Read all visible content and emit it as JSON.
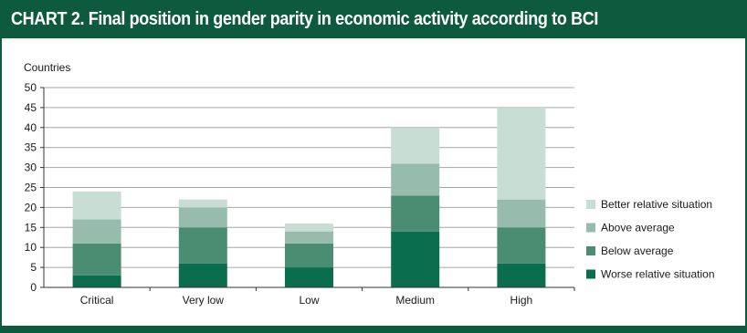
{
  "header": {
    "title": "CHART 2. Final position in gender parity in economic activity according to BCI"
  },
  "colors": {
    "frame": "#0d5a3e",
    "gridline": "#a6a6a6"
  },
  "chart_data": {
    "type": "bar",
    "stacked": true,
    "title": "CHART 2. Final position in gender parity in economic activity according to BCI",
    "ylabel": "Countries",
    "xlabel": "",
    "ylim": [
      0,
      50
    ],
    "yticks": [
      0,
      5,
      10,
      15,
      20,
      25,
      30,
      35,
      40,
      45,
      50
    ],
    "grid": true,
    "legend_position": "right",
    "categories": [
      "Critical",
      "Very low",
      "Low",
      "Medium",
      "High"
    ],
    "series": [
      {
        "name": "Worse relative situation",
        "color": "#0a6e4e",
        "values": [
          3,
          6,
          5,
          14,
          6
        ]
      },
      {
        "name": "Below average",
        "color": "#4b8d73",
        "values": [
          8,
          9,
          6,
          9,
          9
        ]
      },
      {
        "name": "Above average",
        "color": "#97bcad",
        "values": [
          6,
          5,
          3,
          8,
          7
        ]
      },
      {
        "name": "Better relative situation",
        "color": "#c8ddd4",
        "values": [
          7,
          2,
          2,
          9,
          23
        ]
      }
    ]
  }
}
